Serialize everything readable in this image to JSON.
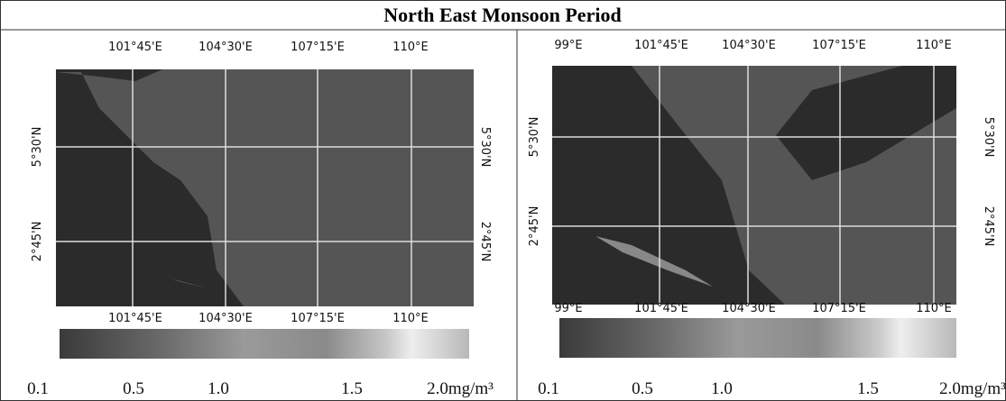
{
  "title": "North East Monsoon Period",
  "panels": [
    {
      "top_labels": [
        "101°45'E",
        "104°30'E",
        "107°15'E",
        "110°E"
      ],
      "bottom_labels": [
        "101°45'E",
        "104°30'E",
        "107°15'E",
        "110°E"
      ],
      "left_labels": [
        "5°30'N",
        "2°45'N"
      ],
      "right_labels": [
        "5°30'N",
        "2°45'N"
      ],
      "colorbar_labels": [
        "0.1",
        "0.5",
        "1.0",
        "1.5",
        "2.0mg/m³"
      ]
    },
    {
      "top_labels": [
        "99°E",
        "101°45'E",
        "104°30'E",
        "107°15'E",
        "110°E"
      ],
      "bottom_labels": [
        "99°E",
        "101°45'E",
        "104°30'E",
        "107°15'E",
        "110°E"
      ],
      "left_labels": [
        "5°30'N",
        "2°45'N"
      ],
      "right_labels": [
        "5°30'N",
        "2°45'N"
      ],
      "colorbar_labels": [
        "0.1",
        "0.5",
        "1.0",
        "1.5",
        "2.0mg/m³"
      ]
    }
  ]
}
